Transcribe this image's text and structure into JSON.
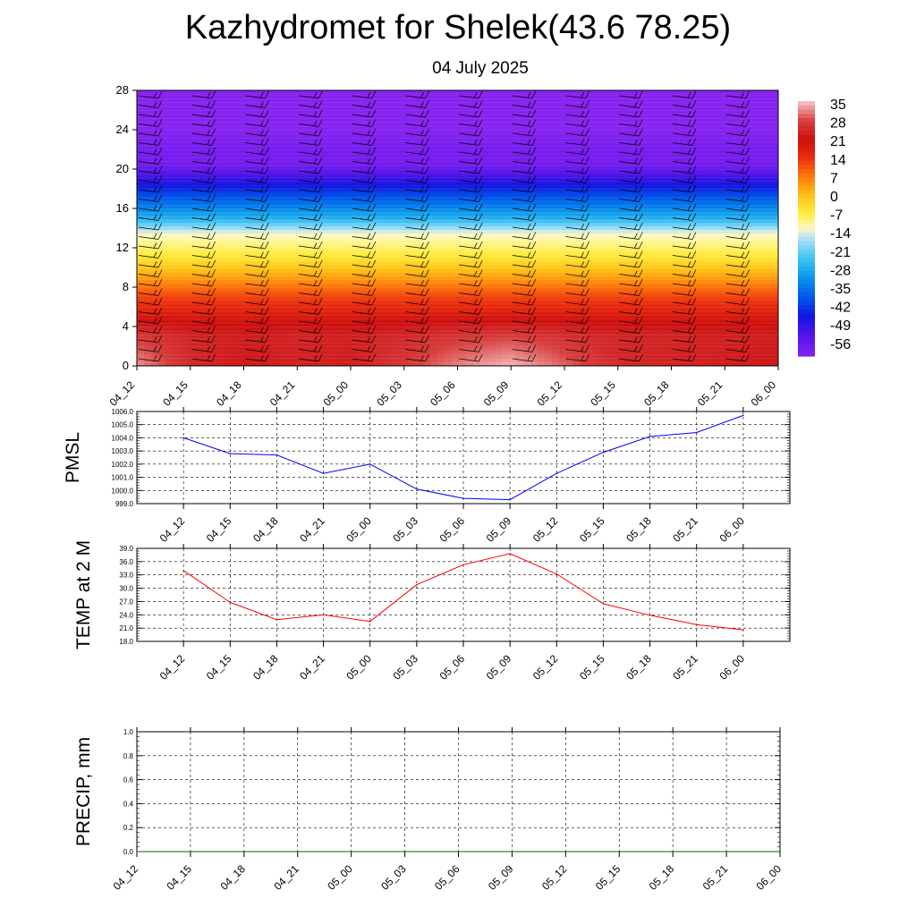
{
  "title": "Kazhydromet for Shelek(43.6 78.25)",
  "subtitle": "04 July 2025",
  "time_labels": [
    "04_12",
    "04_15",
    "04_18",
    "04_21",
    "05_00",
    "05_03",
    "05_06",
    "05_09",
    "05_12",
    "05_15",
    "05_18",
    "05_21",
    "06_00"
  ],
  "colors": {
    "pmsl_line": "#0000ff",
    "temp_line": "#ff0000",
    "precip_line": "#006400",
    "grid": "#000000"
  },
  "chart_data": [
    {
      "type": "heatmap",
      "description_of_fields": "air temperature (°C) by height (km) over time with wind barbs",
      "x": [
        "04_12",
        "04_15",
        "04_18",
        "04_21",
        "05_00",
        "05_03",
        "05_06",
        "05_09",
        "05_12",
        "05_15",
        "05_18",
        "05_21",
        "06_00"
      ],
      "y_ticks": [
        0,
        4,
        8,
        12,
        16,
        20,
        24,
        28
      ],
      "ylim": [
        0,
        28
      ],
      "colorbar_labels": [
        "35",
        "28",
        "21",
        "14",
        "7",
        "0",
        "-7",
        "-14",
        "-21",
        "-28",
        "-35",
        "-42",
        "-49",
        "-56"
      ],
      "colorbar_range": [
        -63,
        35
      ],
      "surface_temperature": [
        33,
        25,
        22,
        24,
        23,
        27,
        32,
        35,
        30,
        25,
        24,
        23,
        22
      ],
      "profile": [
        {
          "height": 0,
          "temp": 24
        },
        {
          "height": 3,
          "temp": 24
        },
        {
          "height": 7,
          "temp": 12
        },
        {
          "height": 11,
          "temp": -6
        },
        {
          "height": 13.5,
          "temp": -14
        },
        {
          "height": 15,
          "temp": -28
        },
        {
          "height": 18,
          "temp": -45
        },
        {
          "height": 20.5,
          "temp": -60
        },
        {
          "height": 22,
          "temp": -60
        },
        {
          "height": 24,
          "temp": -63
        },
        {
          "height": 28,
          "temp": -63
        }
      ]
    },
    {
      "type": "line",
      "ylabel": "PMSL",
      "x": [
        "04_12",
        "04_15",
        "04_18",
        "04_21",
        "05_00",
        "05_03",
        "05_06",
        "05_09",
        "05_12",
        "05_15",
        "05_18",
        "05_21",
        "06_00"
      ],
      "series": [
        {
          "values": [
            1004.0,
            1002.8,
            1002.7,
            1001.3,
            1002.0,
            1000.1,
            999.4,
            999.3,
            1001.3,
            1002.9,
            1004.1,
            1004.4,
            1005.7
          ]
        }
      ],
      "ylim": [
        999.0,
        1006.0
      ],
      "y_tick_labels": [
        "999.0",
        "1000.0",
        "1001.0",
        "1002.0",
        "1003.0",
        "1004.0",
        "1005.0",
        "1006.0"
      ],
      "grid": true
    },
    {
      "type": "line",
      "ylabel": "TEMP at 2 M",
      "x": [
        "04_12",
        "04_15",
        "04_18",
        "04_21",
        "05_00",
        "05_03",
        "05_06",
        "05_09",
        "05_12",
        "05_15",
        "05_18",
        "05_21",
        "06_00"
      ],
      "series": [
        {
          "values": [
            34.0,
            26.8,
            22.9,
            24.0,
            22.5,
            30.8,
            35.3,
            37.8,
            33.2,
            26.5,
            23.9,
            21.8,
            20.6
          ]
        }
      ],
      "ylim": [
        18.0,
        39.0
      ],
      "y_tick_labels": [
        "18.0",
        "21.0",
        "24.0",
        "27.0",
        "30.0",
        "33.0",
        "36.0",
        "39.0"
      ],
      "grid": true
    },
    {
      "type": "line",
      "ylabel": "PRECIP, mm",
      "x": [
        "04_12",
        "04_15",
        "04_18",
        "04_21",
        "05_00",
        "05_03",
        "05_06",
        "05_09",
        "05_12",
        "05_15",
        "05_18",
        "05_21",
        "06_00"
      ],
      "series": [
        {
          "values": [
            0,
            0,
            0,
            0,
            0,
            0,
            0,
            0,
            0,
            0,
            0,
            0,
            0
          ]
        }
      ],
      "ylim": [
        0.0,
        1.0
      ],
      "y_tick_labels": [
        "0.0",
        "0.2",
        "0.4",
        "0.6",
        "0.8",
        "1.0"
      ],
      "grid": true
    }
  ]
}
